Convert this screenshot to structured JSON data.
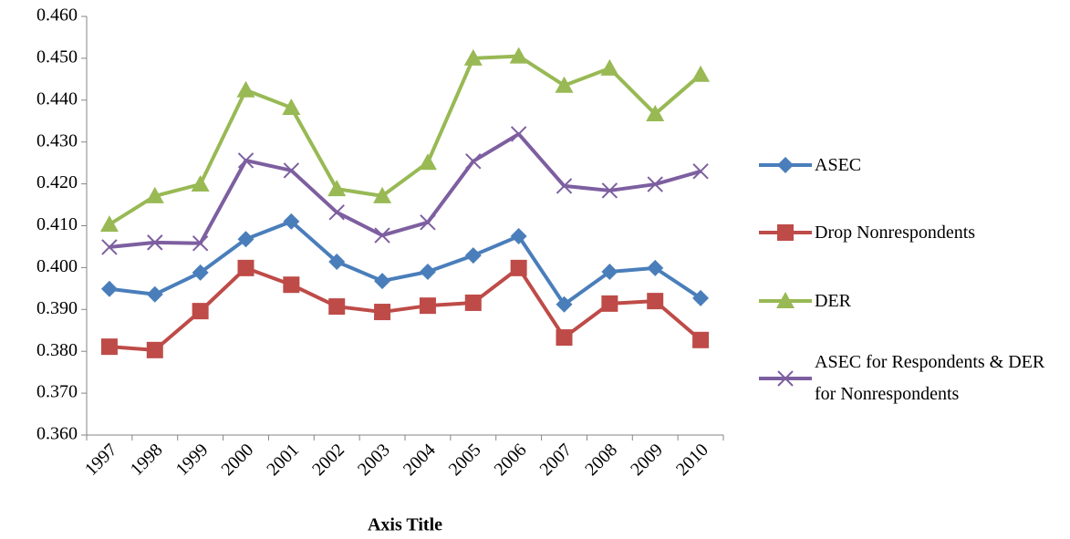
{
  "chart_data": {
    "type": "line",
    "x_label": "Axis Title",
    "categories": [
      "1997",
      "1998",
      "1999",
      "2000",
      "2001",
      "2002",
      "2003",
      "2004",
      "2005",
      "2006",
      "2007",
      "2008",
      "2009",
      "2010"
    ],
    "ylim": [
      0.36,
      0.46
    ],
    "yticks": [
      {
        "value": 0.36,
        "label": "0.360"
      },
      {
        "value": 0.37,
        "label": "0.370"
      },
      {
        "value": 0.38,
        "label": "0.380"
      },
      {
        "value": 0.39,
        "label": "0.390"
      },
      {
        "value": 0.4,
        "label": "0.400"
      },
      {
        "value": 0.41,
        "label": "0.410"
      },
      {
        "value": 0.42,
        "label": "0.420"
      },
      {
        "value": 0.43,
        "label": "0.430"
      },
      {
        "value": 0.44,
        "label": "0.440"
      },
      {
        "value": 0.45,
        "label": "0.450"
      },
      {
        "value": 0.46,
        "label": "0.460"
      }
    ],
    "grid": false,
    "legend": "right",
    "series": [
      {
        "name": "ASEC",
        "color": "#4a7ebb",
        "marker": "diamond",
        "values": [
          0.3949,
          0.3936,
          0.3988,
          0.4068,
          0.411,
          0.4014,
          0.3968,
          0.399,
          0.4029,
          0.4075,
          0.3912,
          0.399,
          0.3999,
          0.3927
        ]
      },
      {
        "name": "Drop Nonrespondents",
        "color": "#be4b48",
        "marker": "square",
        "values": [
          0.3811,
          0.3803,
          0.3896,
          0.3999,
          0.3959,
          0.3907,
          0.3894,
          0.3909,
          0.3916,
          0.3999,
          0.3833,
          0.3914,
          0.392,
          0.3827
        ]
      },
      {
        "name": "DER",
        "color": "#98b954",
        "marker": "triangle",
        "values": [
          0.4103,
          0.4171,
          0.4199,
          0.4424,
          0.4382,
          0.4188,
          0.4171,
          0.4251,
          0.45,
          0.4505,
          0.4435,
          0.4476,
          0.4367,
          0.4461
        ]
      },
      {
        "name": "ASEC for Respondents & DER for Nonrespondents",
        "color": "#7d5fa0",
        "marker": "x",
        "values": [
          0.4049,
          0.406,
          0.4058,
          0.4256,
          0.4232,
          0.4132,
          0.4077,
          0.4108,
          0.4254,
          0.4319,
          0.4195,
          0.4184,
          0.4199,
          0.423
        ]
      }
    ]
  }
}
